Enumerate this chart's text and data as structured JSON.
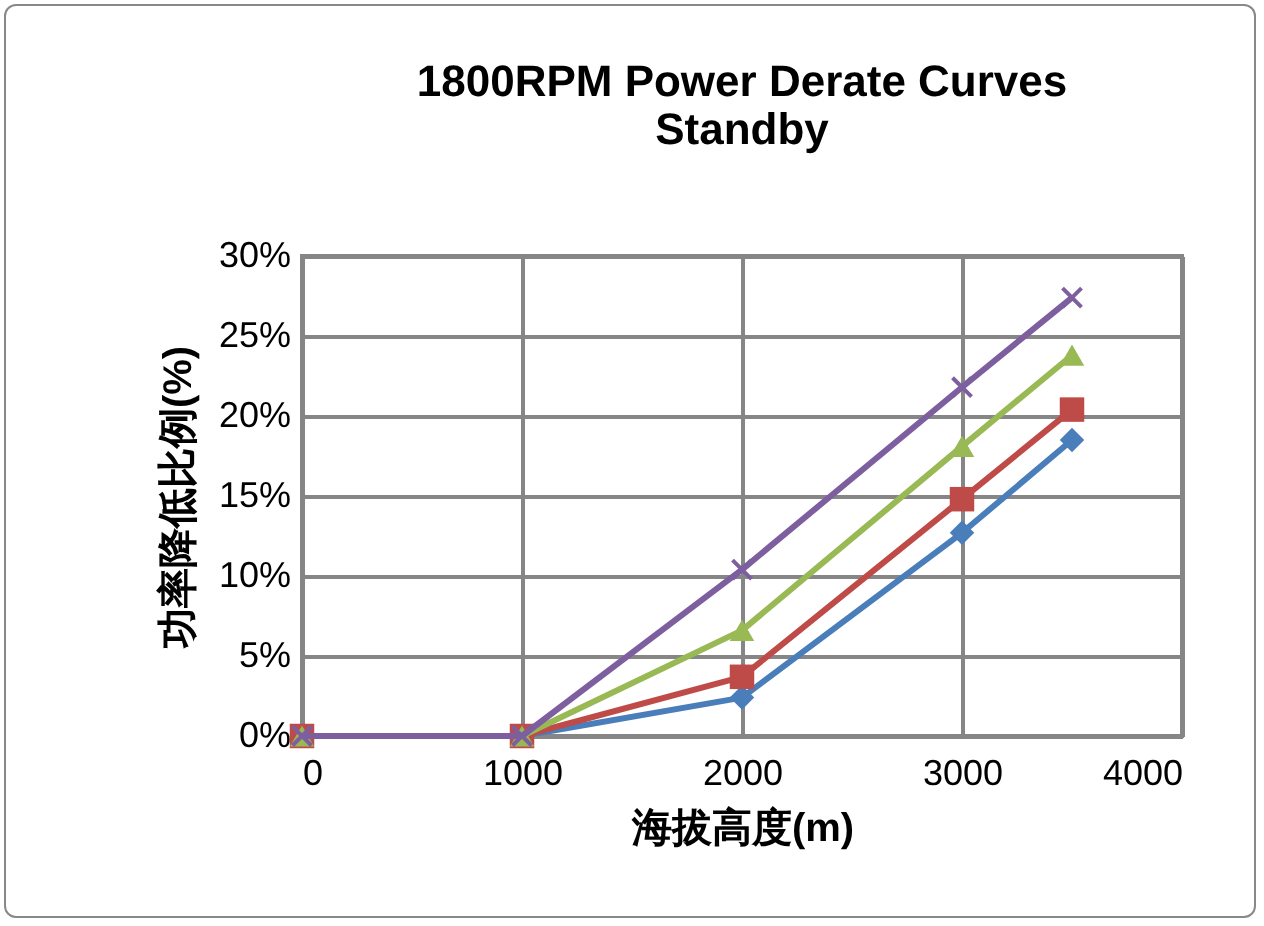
{
  "chart_data": {
    "type": "line",
    "title": [
      "1800RPM Power Derate Curves",
      "Standby"
    ],
    "xlabel": "海拔高度(m)",
    "ylabel": "功率降低比例(%)",
    "x": [
      0,
      1000,
      2000,
      3000,
      3500
    ],
    "series": [
      {
        "color": "#4a7ebb",
        "marker": "diamond",
        "values": [
          0,
          0,
          2.4,
          12.7,
          18.5
        ]
      },
      {
        "color": "#be4b48",
        "marker": "square",
        "values": [
          0,
          0,
          3.7,
          14.8,
          20.4
        ]
      },
      {
        "color": "#98b954",
        "marker": "triangle",
        "values": [
          0,
          0,
          6.6,
          18.1,
          23.8
        ]
      },
      {
        "color": "#7d5fa0",
        "marker": "cross",
        "values": [
          0,
          0,
          10.4,
          21.8,
          27.4
        ]
      }
    ],
    "xlim": [
      0,
      4000
    ],
    "xticks": [
      0,
      1000,
      2000,
      3000,
      4000
    ],
    "ylim": [
      0,
      30
    ],
    "yticks": [
      {
        "value": 0,
        "label": "0%"
      },
      {
        "value": 5,
        "label": "5%"
      },
      {
        "value": 10,
        "label": "10%"
      },
      {
        "value": 15,
        "label": "15%"
      },
      {
        "value": 20,
        "label": "20%"
      },
      {
        "value": 25,
        "label": "25%"
      },
      {
        "value": 30,
        "label": "30%"
      }
    ],
    "grid": true,
    "legend": false,
    "line_style": "solid"
  }
}
